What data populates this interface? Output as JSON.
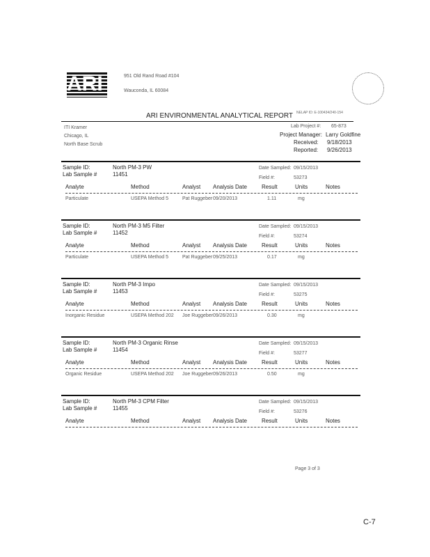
{
  "header": {
    "address_line1": "951 Old Rand Road #104",
    "address_line2": "Wauconda, IL 60084",
    "title": "ARI ENVIRONMENTAL ANALYTICAL REPORT",
    "cert": "NELAP ID: E-100434/240-154",
    "client": [
      "ITI Kramer",
      "Chicago, IL",
      "North Base Scrub"
    ],
    "lab_project_label": "Lab Project #:",
    "lab_project": "65-873",
    "pm_label": "Project Manager:",
    "pm": "Larry Goldfine",
    "received_label": "Received:",
    "received": "9/18/2013",
    "reported_label": "Reported:",
    "reported": "9/26/2013"
  },
  "labels": {
    "sample_id": "Sample ID:",
    "lab_sample": "Lab Sample #",
    "date_sampled": "Date Sampled:",
    "field": "Field #:",
    "columns": [
      "Analyte",
      "Method",
      "Analyst",
      "Analysis Date",
      "Result",
      "Units",
      "Notes"
    ]
  },
  "samples": [
    {
      "sample_id": "North PM-3 PW",
      "lab_sample": "11451",
      "date_sampled": "09/15/2013",
      "field": "53273",
      "rows": [
        [
          "Particulate",
          "USEPA Method 5",
          "Pat Ruggeber",
          "09/20/2013",
          "1.11",
          "mg",
          ""
        ]
      ]
    },
    {
      "sample_id": "North PM-3 M5 Filter",
      "lab_sample": "11452",
      "date_sampled": "09/15/2013",
      "field": "53274",
      "rows": [
        [
          "Particulate",
          "USEPA Method 5",
          "Pat Ruggeber",
          "09/25/2013",
          "0.17",
          "mg",
          ""
        ]
      ]
    },
    {
      "sample_id": "North PM-3 Impo",
      "lab_sample": "11453",
      "date_sampled": "09/15/2013",
      "field": "53275",
      "rows": [
        [
          "Inorganic Residue",
          "USEPA Method 202",
          "Joe Ruggeber",
          "09/26/2013",
          "0.30",
          "mg",
          ""
        ]
      ]
    },
    {
      "sample_id": "North PM-3 Organic Rinse",
      "lab_sample": "11454",
      "date_sampled": "09/15/2013",
      "field": "53277",
      "rows": [
        [
          "Organic Residue",
          "USEPA Method 202",
          "Joe Ruggeber",
          "09/26/2013",
          "0.50",
          "mg",
          ""
        ]
      ]
    },
    {
      "sample_id": "North PM-3 CPM Filter",
      "lab_sample": "11455",
      "date_sampled": "09/15/2013",
      "field": "53276",
      "rows": []
    }
  ],
  "footer": {
    "page": "Page 3 of 3",
    "stamp": "C-7"
  }
}
